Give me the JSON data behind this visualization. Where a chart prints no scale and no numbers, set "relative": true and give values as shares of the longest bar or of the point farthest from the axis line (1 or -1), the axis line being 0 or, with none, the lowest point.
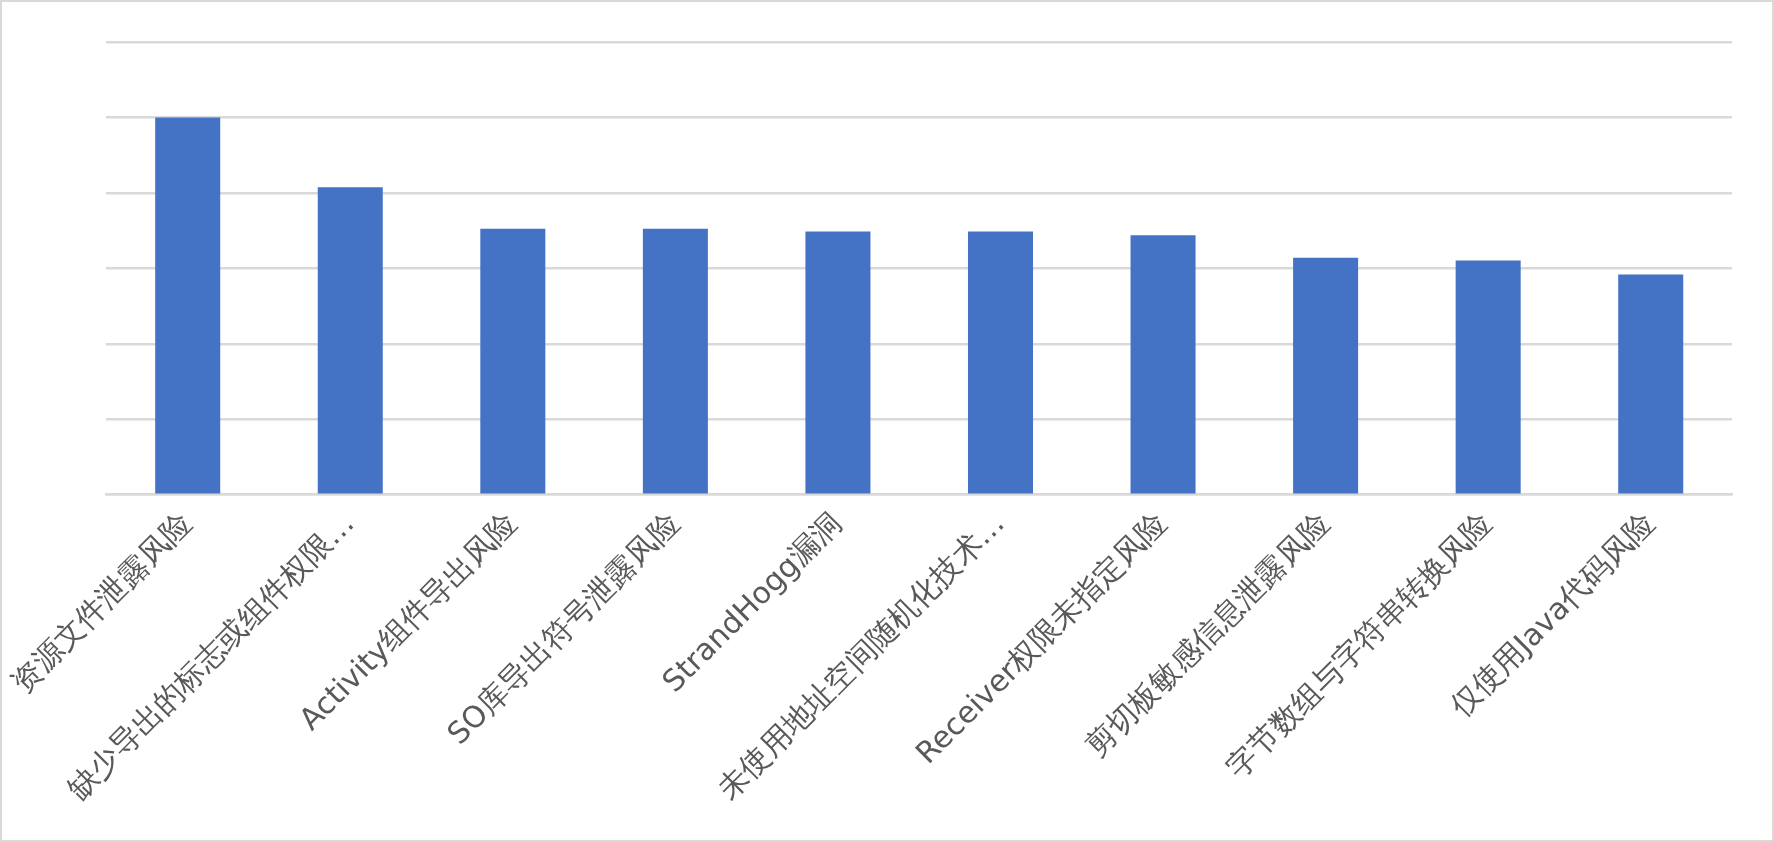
{
  "chart_data": {
    "type": "bar",
    "relative": true,
    "grid": "y",
    "color": "#4472c4",
    "categories": [
      "资源文件泄露风险",
      "缺少导出的标志或组件权限…",
      "Activity组件导出风险",
      "SO库导出符号泄露风险",
      "StrandHogg漏洞",
      "未使用地址空间随机化技术…",
      "Receiver权限未指定风险",
      "剪切板敏感信息泄露风险",
      "字节数组与字符串转换风险",
      "仅使用Java代码风险"
    ],
    "values": [
      1,
      0.815,
      0.705,
      0.705,
      0.698,
      0.698,
      0.688,
      0.628,
      0.621,
      0.584
    ]
  }
}
